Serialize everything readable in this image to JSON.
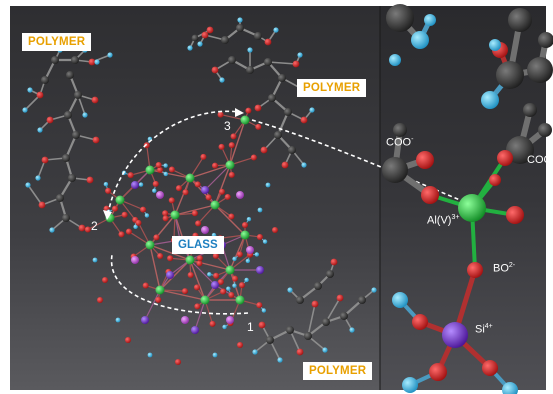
{
  "labels": {
    "polymer_top_left": "POLYMER",
    "polymer_top_right": "POLYMER",
    "polymer_bottom": "POLYMER",
    "glass": "GLASS"
  },
  "path_numbers": {
    "one": "1",
    "two": "2",
    "three": "3"
  },
  "zoom_labels": {
    "coo_left": "COO",
    "coo_left_sup": "-",
    "coo_right": "COO",
    "al": "Al(V)",
    "al_sup": "3+",
    "bo": "BO",
    "bo_sup": "2-",
    "si": "Si",
    "si_sup": "4+"
  },
  "colors": {
    "background_left": "#3a3a3e",
    "background_right": "#2f3033",
    "polymer_label_text": "#e8a000",
    "glass_label_text": "#1d7fc0",
    "atom_carbon": "#2a2a2a",
    "atom_oxygen": "#d42020",
    "atom_hydrogen": "#35b8e6",
    "atom_aluminium": "#22c040",
    "atom_silicon": "#7a30c8",
    "atom_boron": "#c060d0",
    "path_line": "#ffffff"
  }
}
